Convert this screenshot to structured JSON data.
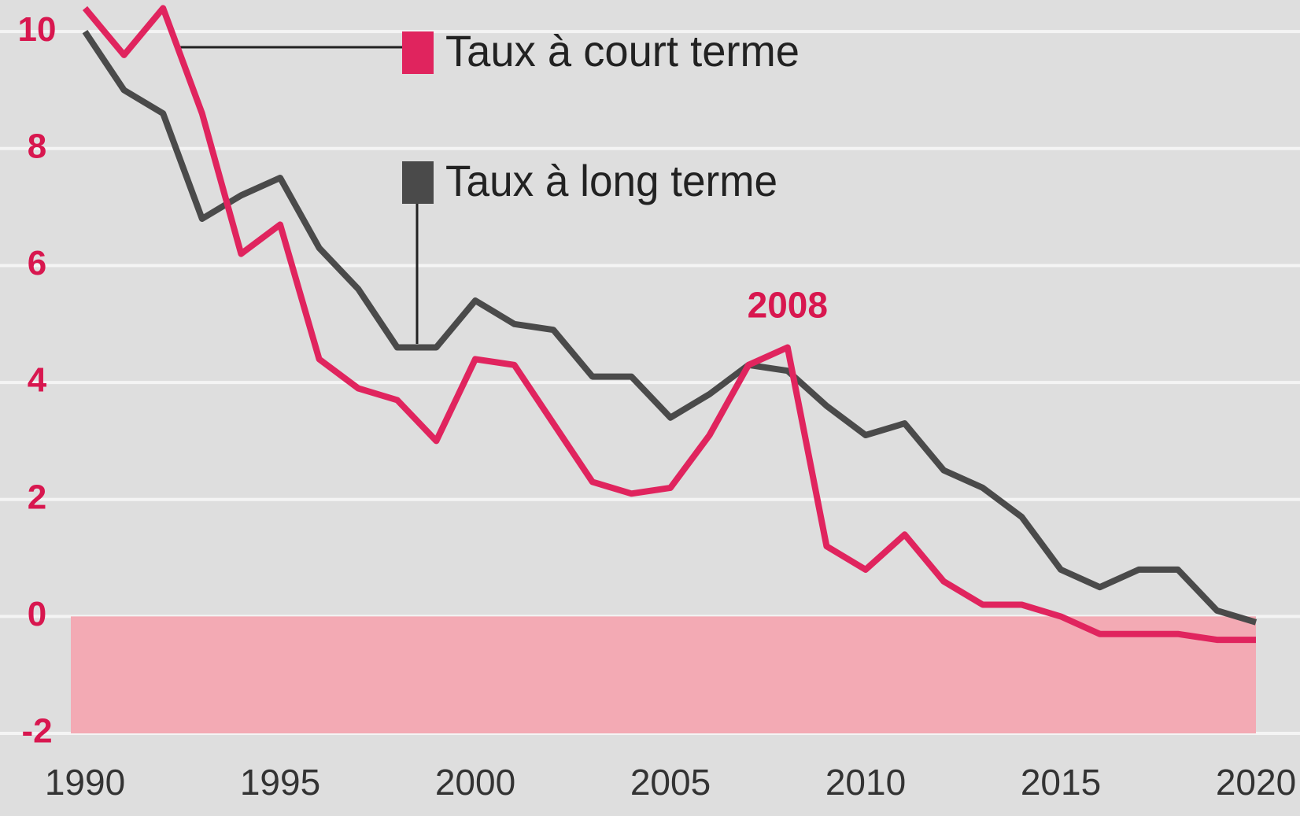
{
  "chart_data": {
    "type": "line",
    "x": [
      1990,
      1991,
      1992,
      1993,
      1994,
      1995,
      1996,
      1997,
      1998,
      1999,
      2000,
      2001,
      2002,
      2003,
      2004,
      2005,
      2006,
      2007,
      2008,
      2009,
      2010,
      2011,
      2012,
      2013,
      2014,
      2015,
      2016,
      2017,
      2018,
      2019,
      2020
    ],
    "series": [
      {
        "name": "Taux à court terme",
        "color": "#e0245e",
        "values": [
          10.4,
          9.6,
          10.4,
          8.6,
          6.2,
          6.7,
          4.4,
          3.9,
          3.7,
          3.0,
          4.4,
          4.3,
          3.3,
          2.3,
          2.1,
          2.2,
          3.1,
          4.3,
          4.6,
          1.2,
          0.8,
          1.4,
          0.6,
          0.2,
          0.2,
          0.0,
          -0.3,
          -0.3,
          -0.3,
          -0.4,
          -0.4
        ]
      },
      {
        "name": "Taux à long terme",
        "color": "#4a4a4a",
        "values": [
          10.0,
          9.0,
          8.6,
          6.8,
          7.2,
          7.5,
          6.3,
          5.6,
          4.6,
          4.6,
          5.4,
          5.0,
          4.9,
          4.1,
          4.1,
          3.4,
          3.8,
          4.3,
          4.2,
          3.6,
          3.1,
          3.3,
          2.5,
          2.2,
          1.7,
          0.8,
          0.5,
          0.8,
          0.8,
          0.1,
          -0.1
        ]
      }
    ],
    "xlim": [
      1990,
      2020
    ],
    "xticks": [
      1990,
      1995,
      2000,
      2005,
      2010,
      2015,
      2020
    ],
    "ylim": [
      -2,
      10.5
    ],
    "yticks": [
      -2,
      0,
      2,
      4,
      6,
      8,
      10
    ],
    "grid": true,
    "annotations": [
      {
        "text": "2008",
        "x": 2008
      }
    ]
  }
}
